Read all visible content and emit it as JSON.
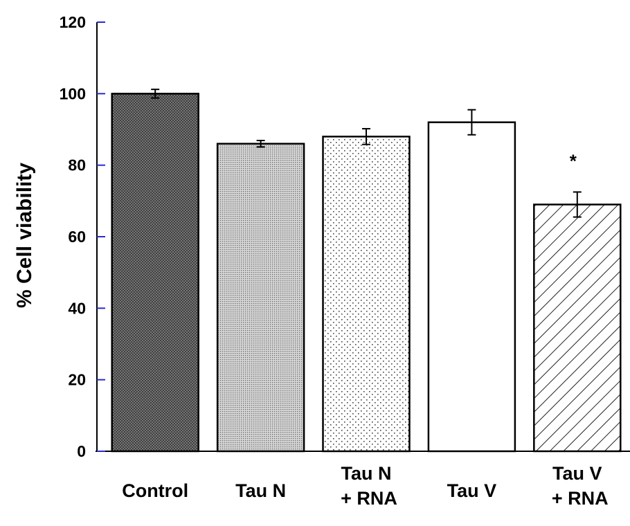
{
  "chart_data": {
    "type": "bar",
    "title": "",
    "xlabel": "",
    "ylabel": "% Cell viability",
    "ylim": [
      0,
      120
    ],
    "yticks": [
      0,
      20,
      40,
      60,
      80,
      100,
      120
    ],
    "grid": false,
    "legend": "none",
    "categories": [
      [
        "Control"
      ],
      [
        "Tau N"
      ],
      [
        "Tau N",
        "+ RNA"
      ],
      [
        "Tau V"
      ],
      [
        "Tau V",
        "+ RNA"
      ]
    ],
    "values": [
      100,
      86,
      88,
      92,
      69
    ],
    "error": [
      1.2,
      0.9,
      2.2,
      3.5,
      3.5
    ],
    "fills": [
      "dark-crosshatch",
      "fine-dots",
      "sparse-dots",
      "white",
      "diagonal-hatch"
    ],
    "annotations": [
      {
        "category_index": 4,
        "text": "*"
      }
    ],
    "colors": {
      "axis": "#000000",
      "tick_marks": "#2a2ad0",
      "bar_outline": "#000000"
    }
  }
}
